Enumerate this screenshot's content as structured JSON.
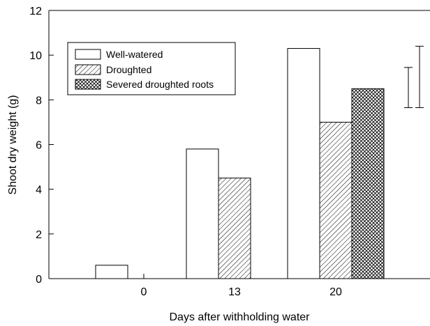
{
  "chart_data": {
    "type": "bar",
    "categories": [
      "0",
      "13",
      "20"
    ],
    "xlabel": "Days after withholding water",
    "ylabel": "Shoot dry weight (g)",
    "ylim": [
      0,
      12
    ],
    "yticks": [
      0,
      2,
      4,
      6,
      8,
      10,
      12
    ],
    "grid": false,
    "legend_position": "top-left",
    "series": [
      {
        "name": "Well-watered",
        "pattern": "empty",
        "values": [
          0.6,
          5.8,
          10.3
        ]
      },
      {
        "name": "Droughted",
        "pattern": "diagonal-hatch",
        "values": [
          null,
          4.5,
          7.0
        ]
      },
      {
        "name": "Severed droughted roots",
        "pattern": "crosshatch",
        "values": [
          null,
          null,
          8.5
        ]
      }
    ],
    "error_bars": [
      {
        "center": 8.55,
        "low": 7.65,
        "high": 9.45
      },
      {
        "center": 9.0,
        "low": 7.65,
        "high": 10.4
      }
    ]
  }
}
